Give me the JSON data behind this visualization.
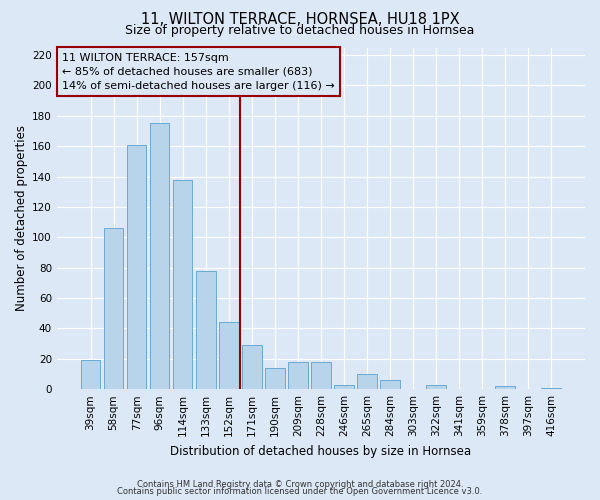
{
  "title": "11, WILTON TERRACE, HORNSEA, HU18 1PX",
  "subtitle": "Size of property relative to detached houses in Hornsea",
  "xlabel": "Distribution of detached houses by size in Hornsea",
  "ylabel": "Number of detached properties",
  "bar_labels": [
    "39sqm",
    "58sqm",
    "77sqm",
    "96sqm",
    "114sqm",
    "133sqm",
    "152sqm",
    "171sqm",
    "190sqm",
    "209sqm",
    "228sqm",
    "246sqm",
    "265sqm",
    "284sqm",
    "303sqm",
    "322sqm",
    "341sqm",
    "359sqm",
    "378sqm",
    "397sqm",
    "416sqm"
  ],
  "bar_values": [
    19,
    106,
    161,
    175,
    138,
    78,
    44,
    29,
    14,
    18,
    18,
    3,
    10,
    6,
    0,
    3,
    0,
    0,
    2,
    0,
    1
  ],
  "bar_color": "#b8d4ea",
  "bar_edge_color": "#6aaad4",
  "highlight_color": "#990000",
  "ylim": [
    0,
    225
  ],
  "yticks": [
    0,
    20,
    40,
    60,
    80,
    100,
    120,
    140,
    160,
    180,
    200,
    220
  ],
  "annotation_title": "11 WILTON TERRACE: 157sqm",
  "annotation_line1": "← 85% of detached houses are smaller (683)",
  "annotation_line2": "14% of semi-detached houses are larger (116) →",
  "footer1": "Contains HM Land Registry data © Crown copyright and database right 2024.",
  "footer2": "Contains public sector information licensed under the Open Government Licence v3.0.",
  "background_color": "#dce8f5",
  "grid_color": "#c5d8ec",
  "title_fontsize": 10.5,
  "subtitle_fontsize": 9,
  "axis_label_fontsize": 8.5,
  "tick_fontsize": 7.5,
  "red_line_x": 6.5
}
